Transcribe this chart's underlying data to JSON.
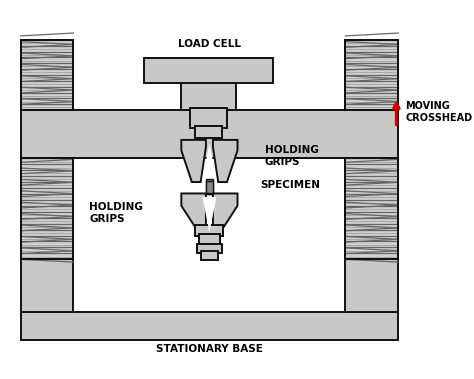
{
  "fig_width": 4.74,
  "fig_height": 3.79,
  "bg_color": "#ffffff",
  "gray_fill": "#c8c8c8",
  "gray_light": "#d8d8d8",
  "edge_color": "#111111",
  "screw_bg": "#d0d0d0",
  "screw_line1": "#666666",
  "screw_line2": "#999999",
  "specimen_color": "#888888",
  "arrow_color": "#cc0000",
  "labels": {
    "load_cell": "LOAD CELL",
    "moving_crosshead": "MOVING\nCROSSHEAD",
    "holding_grips_top": "HOLDING\nGRIPS",
    "specimen": "SPECIMEN",
    "holding_grips_bottom": "HOLDING\nGRIPS",
    "stationary_base": "STATIONARY BASE"
  },
  "font_size": 7.5,
  "font_weight": "bold",
  "label_color": "#000000"
}
